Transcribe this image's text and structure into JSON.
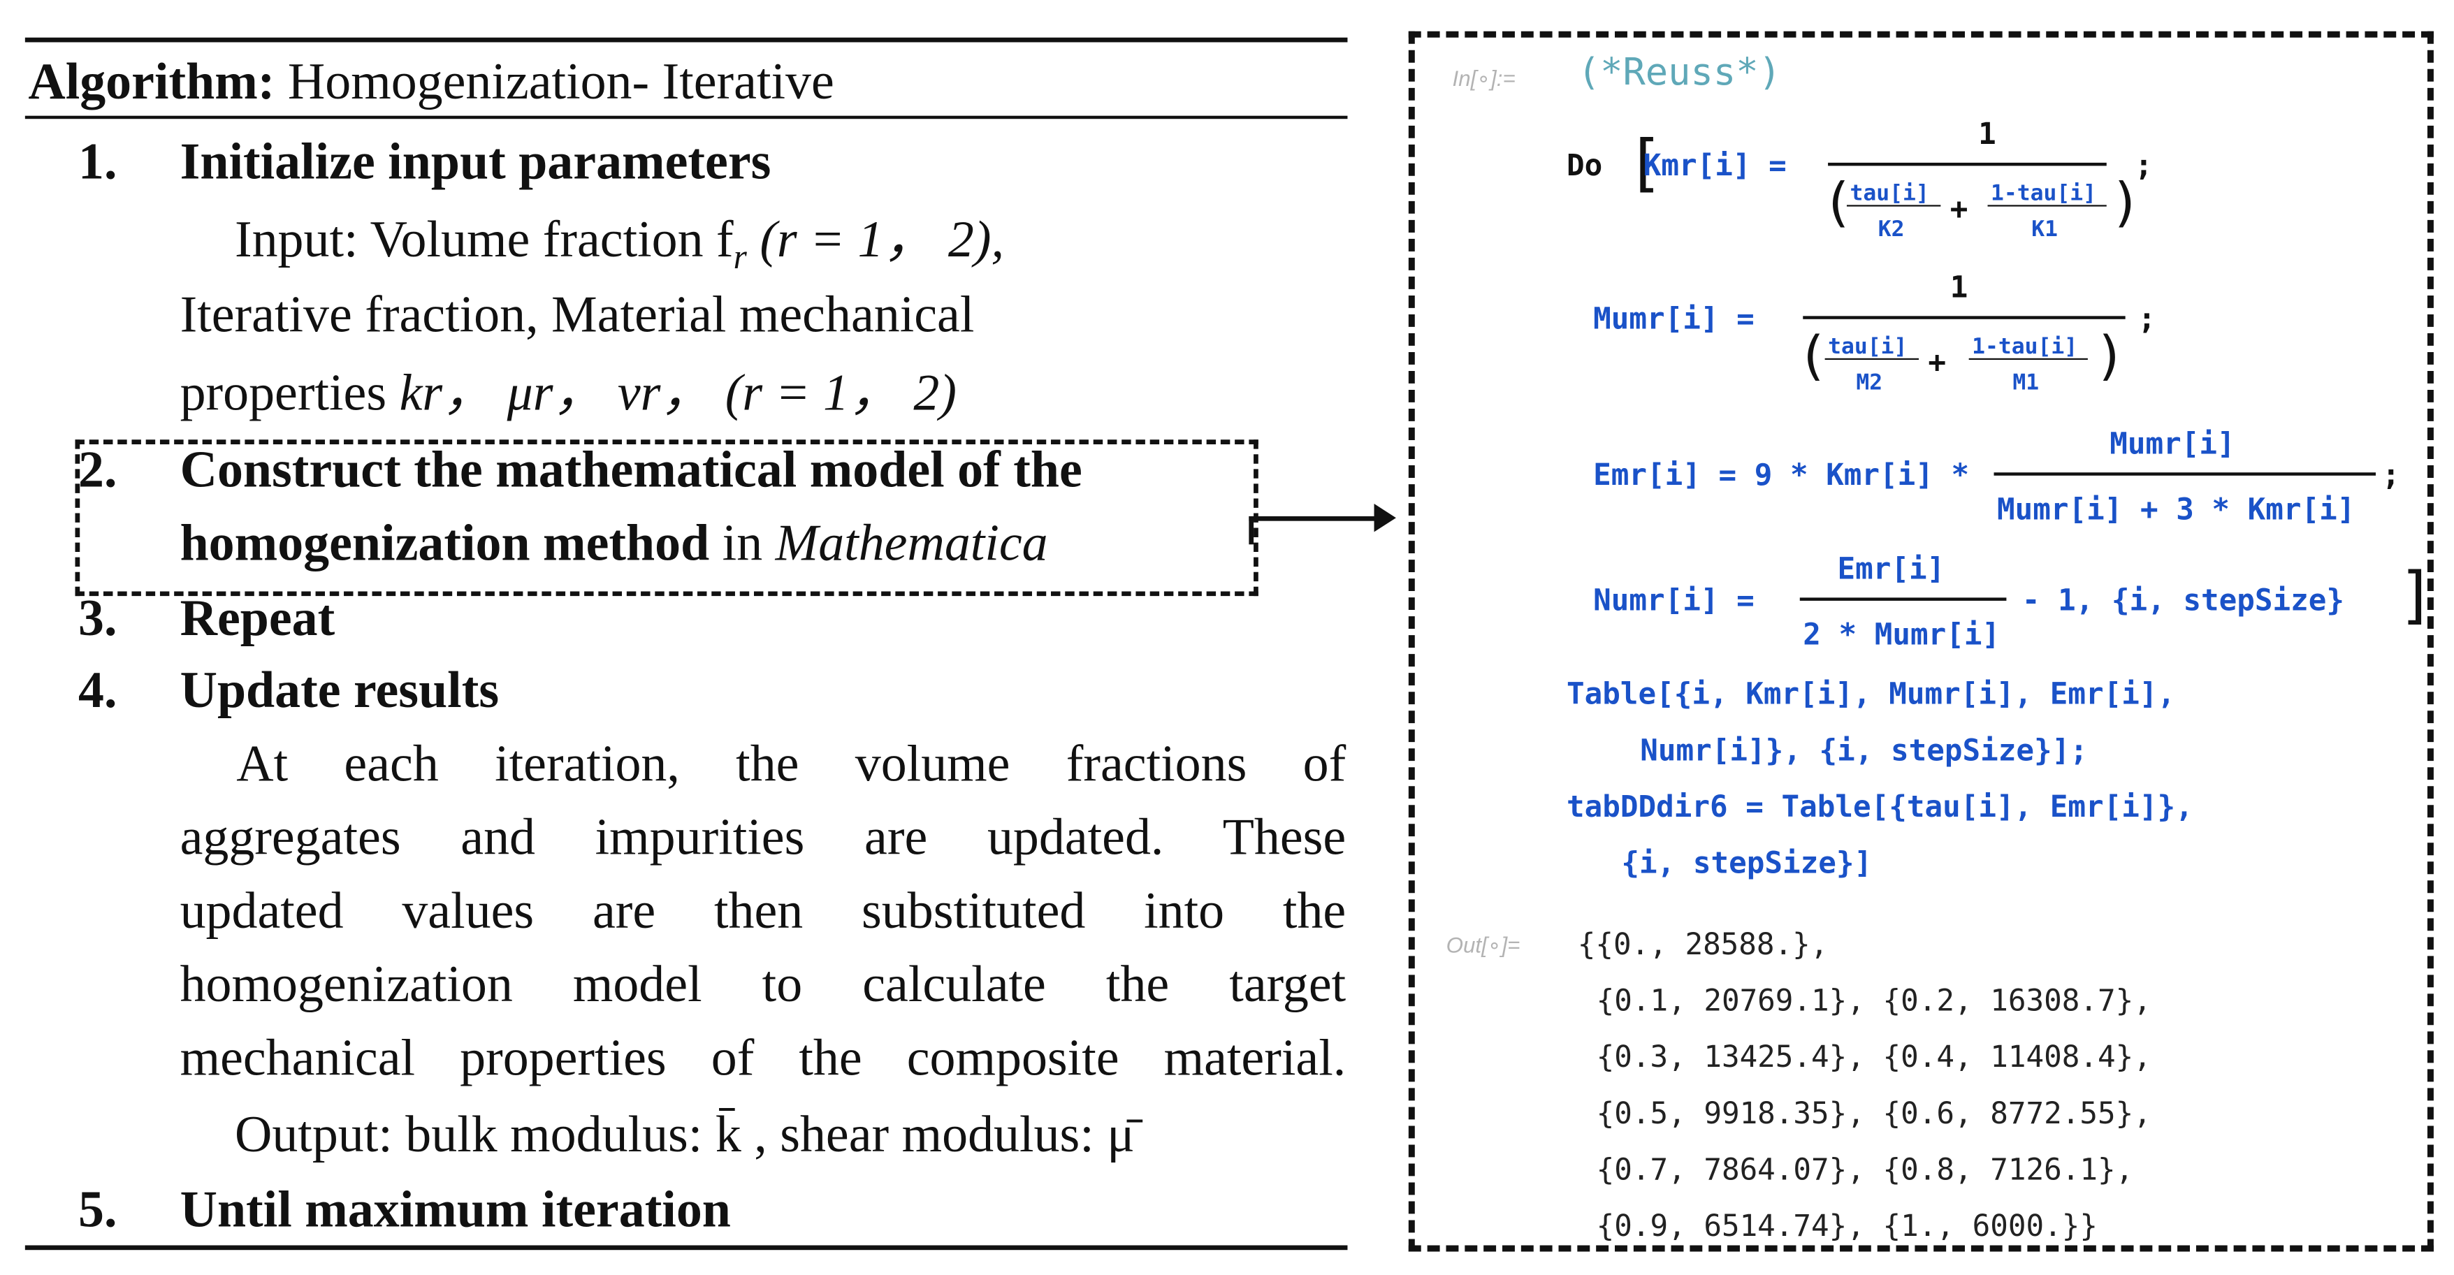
{
  "algorithm": {
    "heading_label": "Algorithm:",
    "heading_text": "Homogenization- Iterative",
    "step1_num": "1.",
    "step1_title": "Initialize input parameters",
    "step1_line1": "Input: Volume fraction  f",
    "step1_line1_sub": "r",
    "step1_line1_tail": " (r = 1， 2),",
    "step1_line2": "Iterative fraction, Material mechanical",
    "step1_line3_pre": "properties  ",
    "step1_line3_math": "k",
    "step1_line3_rest": "r，  μr，  vr，  (r = 1， 2)",
    "step2_num": "2.",
    "step2_title_a": "Construct the mathematical model of the",
    "step2_title_b": "homogenization method",
    "step2_in": " in ",
    "step2_app": "Mathematica",
    "step3_num": "3.",
    "step3_title": "Repeat",
    "step4_num": "4.",
    "step4_title": "Update results",
    "step4_para": [
      "At each iteration, the volume fractions of",
      "aggregates and impurities are updated. These",
      "updated values are then substituted into the",
      "homogenization model to calculate the target",
      "mechanical properties of the composite material."
    ],
    "step4_output": "Output: bulk modulus:  k̄ , shear modulus:  μ̄",
    "step5_num": "5.",
    "step5_title": "Until maximum iteration"
  },
  "code": {
    "in_label": "In[∘]:=",
    "comment": "(*Reuss*)",
    "do_kw": "Do",
    "kmr_lhs": "Kmr[i] =",
    "one": "1",
    "tau_i": "tau[i]",
    "one_minus_tau_i": "1-tau[i]",
    "k2": "K2",
    "k1": "K1",
    "m2": "M2",
    "m1": "M1",
    "plus": "+",
    "semicolon": ";",
    "mumr_lhs": "Mumr[i] =",
    "emr_lhs": "Emr[i] = 9 * Kmr[i] *",
    "emr_num": "Mumr[i]",
    "emr_den": "Mumr[i] + 3 * Kmr[i]",
    "numr_lhs": "Numr[i] =",
    "numr_num": "Emr[i]",
    "numr_den": "2 * Mumr[i]",
    "numr_tail": "- 1,  {i, stepSize}",
    "table_line1": "Table[{i, Kmr[i], Mumr[i], Emr[i],",
    "table_line2": "Numr[i]}, {i, stepSize}];",
    "tab_line1_a": "tabDDdir6",
    "tab_line1_b": " = Table[{tau[i], Emr[i]},",
    "tab_line2": "{i, stepSize}]",
    "out_label": "Out[∘]=",
    "out_lines": [
      "{{0., 28588.},",
      "{0.1, 20769.1}, {0.2, 16308.7},",
      "{0.3, 13425.4}, {0.4, 11408.4},",
      "{0.5, 9918.35}, {0.6, 8772.55},",
      "{0.7, 7864.07}, {0.8, 7126.1},",
      "{0.9, 6514.74}, {1., 6000.}}"
    ]
  }
}
